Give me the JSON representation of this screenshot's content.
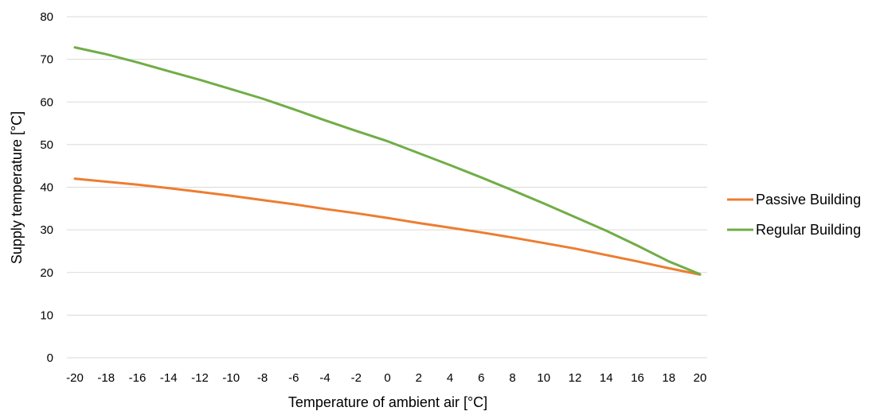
{
  "chart_data": {
    "type": "line",
    "title": "",
    "xlabel": "Temperature  of ambient air [°C]",
    "ylabel": "Supply temperature [°C]",
    "xlim": [
      -20,
      20
    ],
    "ylim": [
      0,
      80
    ],
    "x_ticks": [
      "-20",
      "-18",
      "-16",
      "-14",
      "-12",
      "-10",
      "-8",
      "-6",
      "-4",
      "-2",
      "0",
      "2",
      "4",
      "6",
      "8",
      "10",
      "12",
      "14",
      "16",
      "18",
      "20"
    ],
    "y_ticks": [
      "0",
      "10",
      "20",
      "30",
      "40",
      "50",
      "60",
      "70",
      "80"
    ],
    "grid": "horizontal",
    "legend_position": "right",
    "x": [
      -20,
      -18,
      -16,
      -14,
      -12,
      -10,
      -8,
      -6,
      -4,
      -2,
      0,
      2,
      4,
      6,
      8,
      10,
      12,
      14,
      16,
      18,
      20
    ],
    "series": [
      {
        "name": "Passive Building",
        "color": "#ed7d31",
        "values": [
          42.0,
          41.3,
          40.6,
          39.8,
          38.9,
          38.0,
          37.0,
          36.0,
          34.9,
          33.9,
          32.8,
          31.6,
          30.5,
          29.4,
          28.2,
          26.9,
          25.6,
          24.1,
          22.6,
          21.0,
          19.5
        ]
      },
      {
        "name": "Regular Building",
        "color": "#70ad47",
        "values": [
          72.8,
          71.2,
          69.3,
          67.2,
          65.2,
          63.0,
          60.8,
          58.3,
          55.7,
          53.2,
          50.8,
          48.0,
          45.2,
          42.3,
          39.3,
          36.2,
          33.0,
          29.8,
          26.3,
          22.6,
          19.6
        ]
      }
    ]
  }
}
